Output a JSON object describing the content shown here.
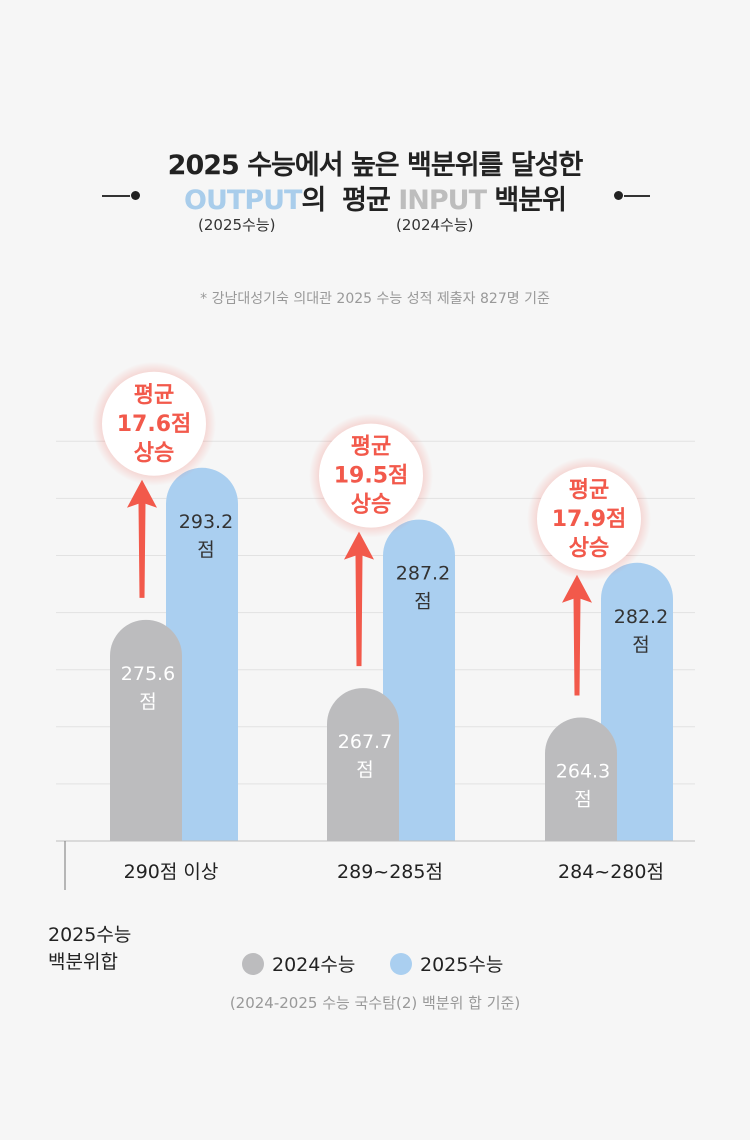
{
  "header": {
    "title_line1": "2025 수능에서 높은 백분위를 달성한",
    "output_word": "OUTPUT",
    "output_suffix": "의",
    "avg_word": "평균",
    "input_word": "INPUT",
    "input_suffix": "백분위",
    "output_sub": "(2025수능)",
    "input_sub": "(2024수능)",
    "note": "* 강남대성기숙 의대관 2025 수능 성적 제출자 827명 기준"
  },
  "colors": {
    "series_2024": "#bcbcbe",
    "series_2025": "#aacff0",
    "arrow": "#f2594b",
    "grid": "#e2e2e2"
  },
  "chart_data": {
    "type": "bar",
    "categories": [
      "290점 이상",
      "289~285점",
      "284~280점"
    ],
    "series": [
      {
        "name": "2024수능",
        "values": [
          275.6,
          267.7,
          264.3
        ]
      },
      {
        "name": "2025수능",
        "values": [
          293.2,
          287.2,
          282.2
        ]
      }
    ],
    "value_unit": "점",
    "data_labels_2024": [
      "275.6",
      "267.7",
      "264.3"
    ],
    "data_labels_2025": [
      "293.2",
      "287.2",
      "282.2"
    ],
    "increase_badges": [
      {
        "line1": "평균",
        "line2": "17.6점",
        "line3": "상승"
      },
      {
        "line1": "평균",
        "line2": "19.5점",
        "line3": "상승"
      },
      {
        "line1": "평균",
        "line2": "17.9점",
        "line3": "상승"
      }
    ],
    "ylabel_line1": "2025수능",
    "ylabel_line2": "백분위합",
    "legend": [
      "2024수능",
      "2025수능"
    ],
    "legend_position": "bottom",
    "ylim": [
      250,
      300
    ],
    "grid": true
  },
  "footer": {
    "basis": "(2024-2025 수능 국수탐(2) 백분위 합 기준)"
  }
}
